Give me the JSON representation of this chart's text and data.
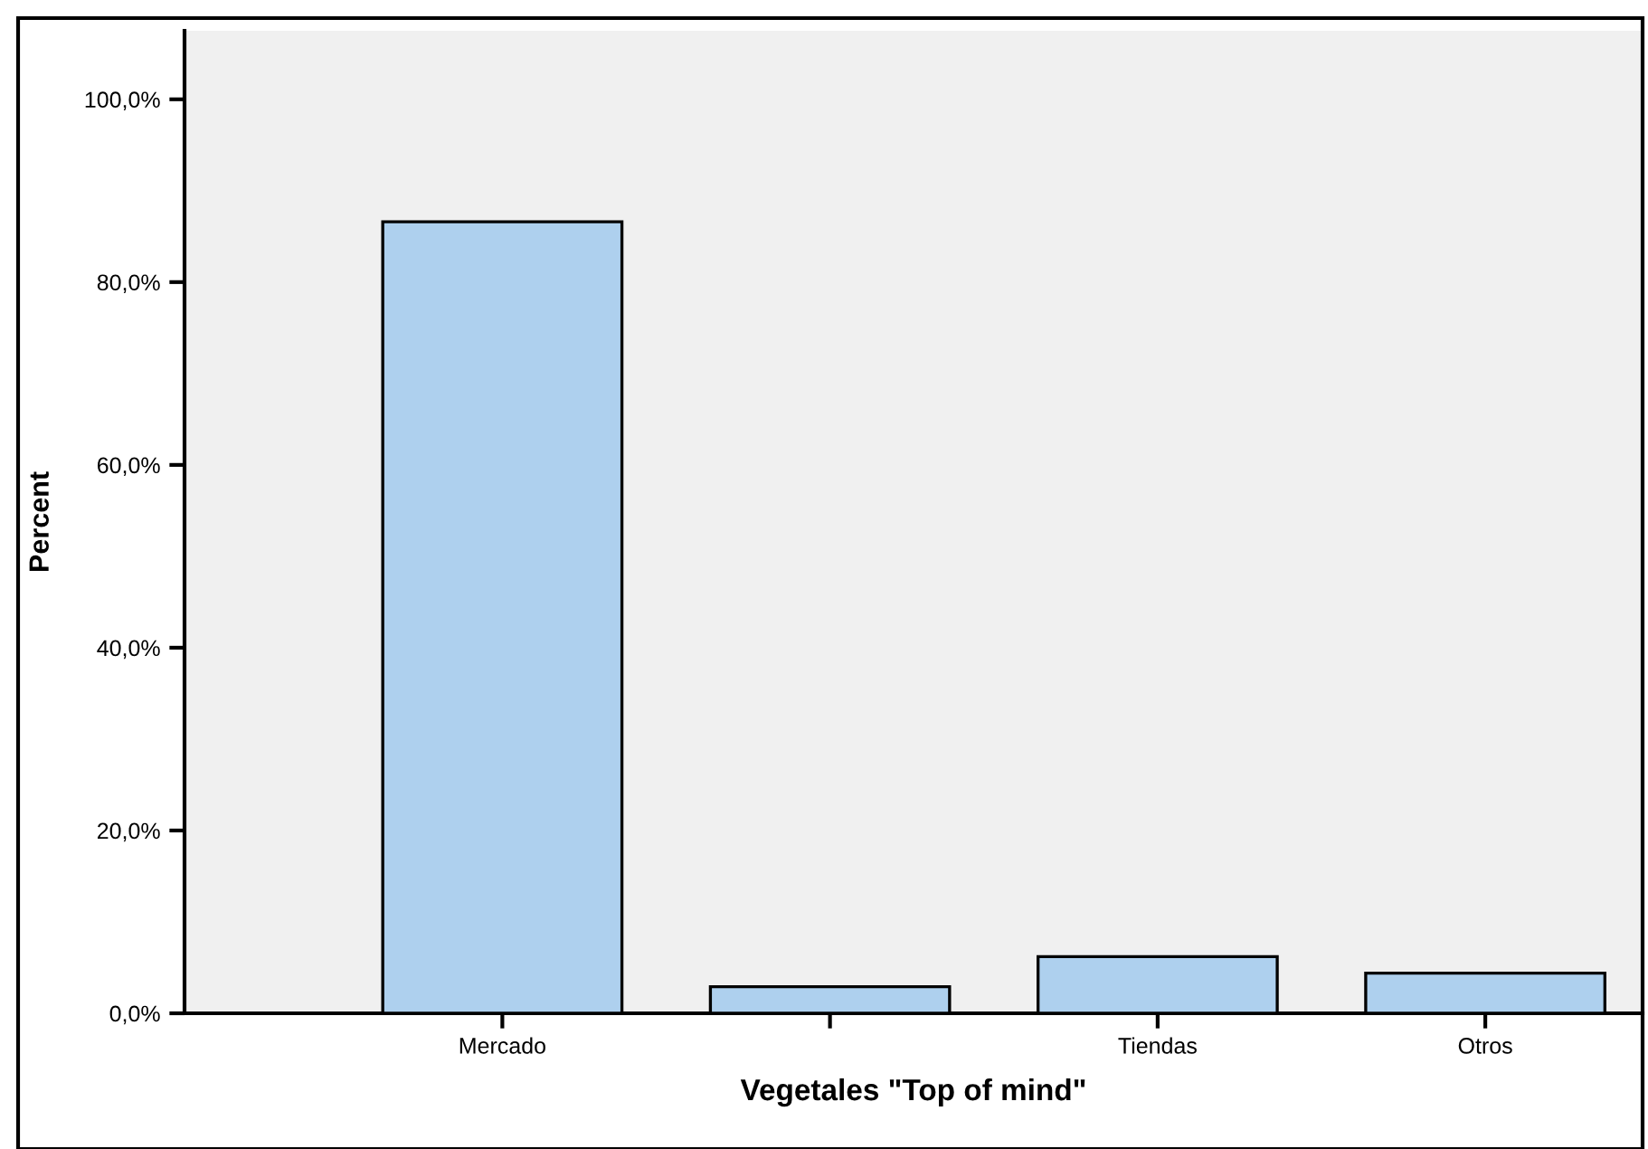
{
  "chart_data": {
    "type": "bar",
    "xlabel": "Vegetales \"Top of mind\"",
    "ylabel": "Percent",
    "categories": [
      "Mercado",
      null,
      "Tiendas",
      "Otros"
    ],
    "values": [
      86.6,
      2.9,
      6.2,
      4.4
    ],
    "color": "#aed0ee",
    "ylim": [
      0,
      107.5
    ],
    "yticks": [
      {
        "value": 0,
        "label": "0,0%"
      },
      {
        "value": 20,
        "label": "20,0%"
      },
      {
        "value": 40,
        "label": "40,0%"
      },
      {
        "value": 60,
        "label": "60,0%"
      },
      {
        "value": 80,
        "label": "80,0%"
      },
      {
        "value": 100,
        "label": "100,0%"
      }
    ],
    "grid": false,
    "legend": false
  }
}
